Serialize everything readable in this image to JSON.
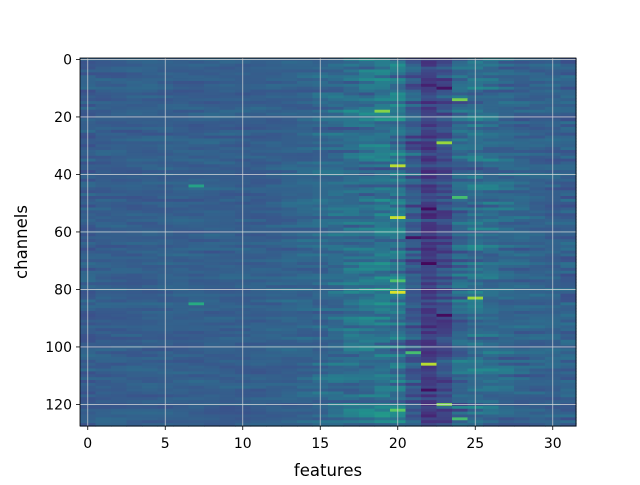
{
  "chart_data": {
    "type": "heatmap",
    "title": "",
    "xlabel": "features",
    "ylabel": "channels",
    "x_range": [
      -0.5,
      31.5
    ],
    "y_range": [
      -0.5,
      127.5
    ],
    "y_inverted": true,
    "x_ticks": [
      0,
      5,
      10,
      15,
      20,
      25,
      30
    ],
    "y_ticks": [
      0,
      20,
      40,
      60,
      80,
      100,
      120
    ],
    "grid": true,
    "colormap": "viridis",
    "n_features": 32,
    "n_channels": 128,
    "value_range": [
      0,
      1
    ],
    "notes_for_values": "values normalized 0-1; background mostly ~0.3, columns 18-27 show high variance",
    "column_profile": [
      0.3,
      0.31,
      0.3,
      0.3,
      0.31,
      0.3,
      0.31,
      0.3,
      0.31,
      0.31,
      0.3,
      0.31,
      0.31,
      0.32,
      0.33,
      0.33,
      0.36,
      0.37,
      0.38,
      0.39,
      0.44,
      0.28,
      0.12,
      0.22,
      0.38,
      0.36,
      0.37,
      0.34,
      0.33,
      0.32,
      0.32,
      0.31
    ],
    "column_variance": [
      0.06,
      0.06,
      0.06,
      0.06,
      0.06,
      0.06,
      0.06,
      0.07,
      0.06,
      0.06,
      0.06,
      0.06,
      0.06,
      0.07,
      0.08,
      0.09,
      0.12,
      0.14,
      0.16,
      0.18,
      0.24,
      0.16,
      0.1,
      0.14,
      0.18,
      0.16,
      0.14,
      0.12,
      0.1,
      0.08,
      0.08,
      0.07
    ],
    "hotspots": [
      {
        "feature": 20,
        "channel": 81,
        "value": 0.95
      },
      {
        "feature": 20,
        "channel": 55,
        "value": 0.92
      },
      {
        "feature": 20,
        "channel": 37,
        "value": 0.9
      },
      {
        "feature": 22,
        "channel": 106,
        "value": 0.9
      },
      {
        "feature": 25,
        "channel": 83,
        "value": 0.86
      },
      {
        "feature": 23,
        "channel": 29,
        "value": 0.85
      },
      {
        "feature": 19,
        "channel": 18,
        "value": 0.82
      },
      {
        "feature": 24,
        "channel": 14,
        "value": 0.8
      },
      {
        "feature": 23,
        "channel": 120,
        "value": 0.8
      },
      {
        "feature": 20,
        "channel": 122,
        "value": 0.75
      },
      {
        "feature": 20,
        "channel": 77,
        "value": 0.72
      },
      {
        "feature": 21,
        "channel": 102,
        "value": 0.7
      },
      {
        "feature": 24,
        "channel": 48,
        "value": 0.7
      },
      {
        "feature": 7,
        "channel": 85,
        "value": 0.62
      },
      {
        "feature": 7,
        "channel": 44,
        "value": 0.58
      },
      {
        "feature": 24,
        "channel": 125,
        "value": 0.7
      }
    ],
    "coldspots": [
      {
        "feature": 22,
        "channel": 71,
        "value": 0.02
      },
      {
        "feature": 22,
        "channel": 52,
        "value": 0.03
      },
      {
        "feature": 23,
        "channel": 89,
        "value": 0.03
      },
      {
        "feature": 21,
        "channel": 62,
        "value": 0.05
      },
      {
        "feature": 23,
        "channel": 10,
        "value": 0.05
      },
      {
        "feature": 22,
        "channel": 115,
        "value": 0.04
      }
    ]
  }
}
